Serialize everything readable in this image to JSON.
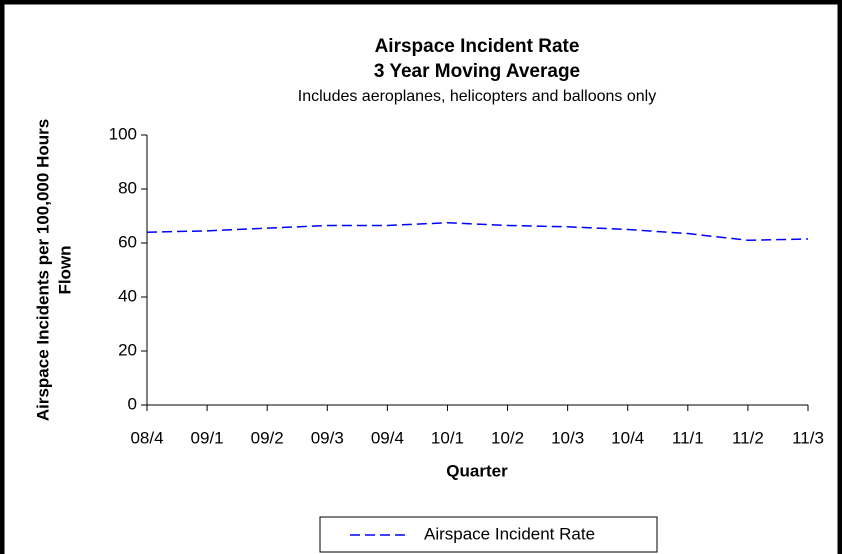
{
  "chart_data": {
    "type": "line",
    "title": "Airspace Incident Rate",
    "subtitle_bold": "3 Year Moving Average",
    "subtitle": "Includes aeroplanes, helicopters and balloons only",
    "x_label": "Quarter",
    "y_label": [
      "Airspace Incidents per 100,000 Hours",
      "Flown"
    ],
    "categories": [
      "08/4",
      "09/1",
      "09/2",
      "09/3",
      "09/4",
      "10/1",
      "10/2",
      "10/3",
      "10/4",
      "11/1",
      "11/2",
      "11/3"
    ],
    "series": [
      {
        "name": "Airspace Incident Rate",
        "color": "#0000ff",
        "values": [
          64,
          64.5,
          65.5,
          66.5,
          66.5,
          67.5,
          66.5,
          66,
          65,
          63.5,
          61,
          61.5
        ]
      }
    ],
    "ylim": [
      0,
      100
    ],
    "yticks": [
      0,
      20,
      40,
      60,
      80,
      100
    ],
    "grid": false,
    "legend": "bottom"
  }
}
